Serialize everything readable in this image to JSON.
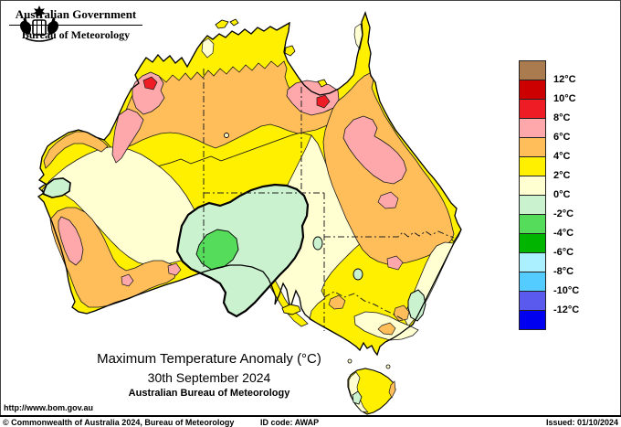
{
  "header": {
    "government": "Australian Government",
    "bureau": "Bureau of Meteorology"
  },
  "title": {
    "line1": "Maximum Temperature Anomaly (°C)",
    "line2": "30th September 2024",
    "line3": "Australian Bureau of Meteorology"
  },
  "legend": {
    "labels": [
      "12°C",
      "10°C",
      "8°C",
      "6°C",
      "4°C",
      "2°C",
      "0°C",
      "-2°C",
      "-4°C",
      "-6°C",
      "-8°C",
      "-10°C",
      "-12°C"
    ],
    "colors": [
      "#A97B4F",
      "#CC0000",
      "#EE1C24",
      "#FFA8AC",
      "#FFBE5A",
      "#FFF000",
      "#FFFFD2",
      "#CBF2CF",
      "#55DC5A",
      "#00B400",
      "#AAF0FF",
      "#55CCFF",
      "#5A5AEE",
      "#0000F0"
    ]
  },
  "map_colors": {
    "sea": "#FFFFFF",
    "coast": "#000000",
    "cream": "#FFFFD2",
    "yellow": "#FFF000",
    "orange": "#FFBE5A",
    "pink": "#FFA8AC",
    "red": "#EE1C24",
    "mint": "#CBF2CF",
    "green": "#55DC5A"
  },
  "footer": {
    "url": "http://www.bom.gov.au",
    "copyright": "© Commonwealth of Australia 2024, Bureau of Meteorology",
    "id_code": "ID code: AWAP",
    "issued": "Issued: 01/10/2024"
  }
}
